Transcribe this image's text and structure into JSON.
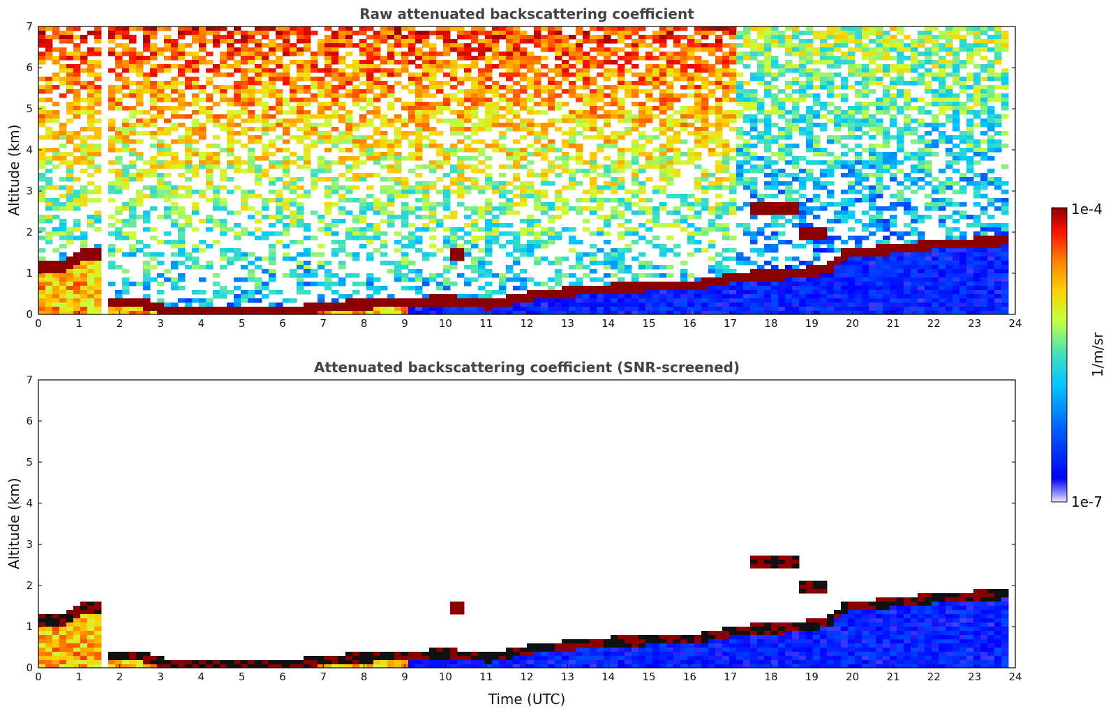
{
  "chart_data": [
    {
      "type": "heatmap",
      "title": "Raw attenuated backscattering coefficient",
      "xlabel": "",
      "ylabel": "Altitude (km)",
      "xlim": [
        0,
        24
      ],
      "ylim": [
        0,
        7
      ],
      "x_ticks": [
        "0",
        "1",
        "2",
        "3",
        "4",
        "5",
        "6",
        "7",
        "8",
        "9",
        "10",
        "11",
        "12",
        "13",
        "14",
        "15",
        "16",
        "17",
        "18",
        "19",
        "20",
        "21",
        "22",
        "23",
        "24"
      ],
      "y_ticks": [
        "0",
        "1",
        "2",
        "3",
        "4",
        "5",
        "6",
        "7"
      ],
      "data_end_hour": 23.8,
      "missing_data_interval": [
        1.45,
        1.55
      ],
      "layer_top_km": [
        [
          0.0,
          1.2
        ],
        [
          0.5,
          1.2
        ],
        [
          1.0,
          1.5
        ],
        [
          1.45,
          1.5
        ],
        [
          1.55,
          0.35
        ],
        [
          2.0,
          0.35
        ],
        [
          2.5,
          0.3
        ],
        [
          3.0,
          0.15
        ],
        [
          3.5,
          0.1
        ],
        [
          4.0,
          0.1
        ],
        [
          5.0,
          0.1
        ],
        [
          6.0,
          0.1
        ],
        [
          7.0,
          0.25
        ],
        [
          8.0,
          0.3
        ],
        [
          9.0,
          0.35
        ],
        [
          10.0,
          0.4
        ],
        [
          10.5,
          0.35
        ],
        [
          11.0,
          0.3
        ],
        [
          12.0,
          0.5
        ],
        [
          13.0,
          0.6
        ],
        [
          14.0,
          0.68
        ],
        [
          15.0,
          0.72
        ],
        [
          16.0,
          0.75
        ],
        [
          16.5,
          0.85
        ],
        [
          17.0,
          0.95
        ],
        [
          17.5,
          1.0
        ],
        [
          18.0,
          1.0
        ],
        [
          19.0,
          1.1
        ],
        [
          19.5,
          1.25
        ],
        [
          19.6,
          1.5
        ],
        [
          20.0,
          1.55
        ],
        [
          21.0,
          1.65
        ],
        [
          22.0,
          1.75
        ],
        [
          23.0,
          1.8
        ],
        [
          23.8,
          1.85
        ]
      ],
      "elevated_layers": [
        {
          "x_range": [
            17.4,
            18.6
          ],
          "altitude_km": 2.6
        },
        {
          "x_range": [
            18.6,
            19.3
          ],
          "altitude_km": 2.0
        },
        {
          "x_range": [
            10.0,
            10.4
          ],
          "altitude_km": 1.55
        }
      ]
    },
    {
      "type": "heatmap",
      "title": "Attenuated backscattering coefficient (SNR-screened)",
      "xlabel": "Time (UTC)",
      "ylabel": "Altitude (km)",
      "xlim": [
        0,
        24
      ],
      "ylim": [
        0,
        7
      ],
      "x_ticks": [
        "0",
        "1",
        "2",
        "3",
        "4",
        "5",
        "6",
        "7",
        "8",
        "9",
        "10",
        "11",
        "12",
        "13",
        "14",
        "15",
        "16",
        "17",
        "18",
        "19",
        "20",
        "21",
        "22",
        "23",
        "24"
      ],
      "y_ticks": [
        "0",
        "1",
        "2",
        "3",
        "4",
        "5",
        "6",
        "7"
      ],
      "data_end_hour": 23.8,
      "missing_data_interval": [
        1.45,
        1.55
      ]
    }
  ],
  "colorbar": {
    "label": "1/m/sr",
    "min_label": "1e-7",
    "max_label": "1e-4",
    "scale": "log",
    "range": [
      1e-07,
      0.0001
    ],
    "colors": [
      "#ecebff",
      "#0000ff",
      "#0060ff",
      "#00c8ff",
      "#40e0c0",
      "#c8ff40",
      "#ffd000",
      "#ff8000",
      "#ff1000",
      "#8b0000"
    ]
  }
}
